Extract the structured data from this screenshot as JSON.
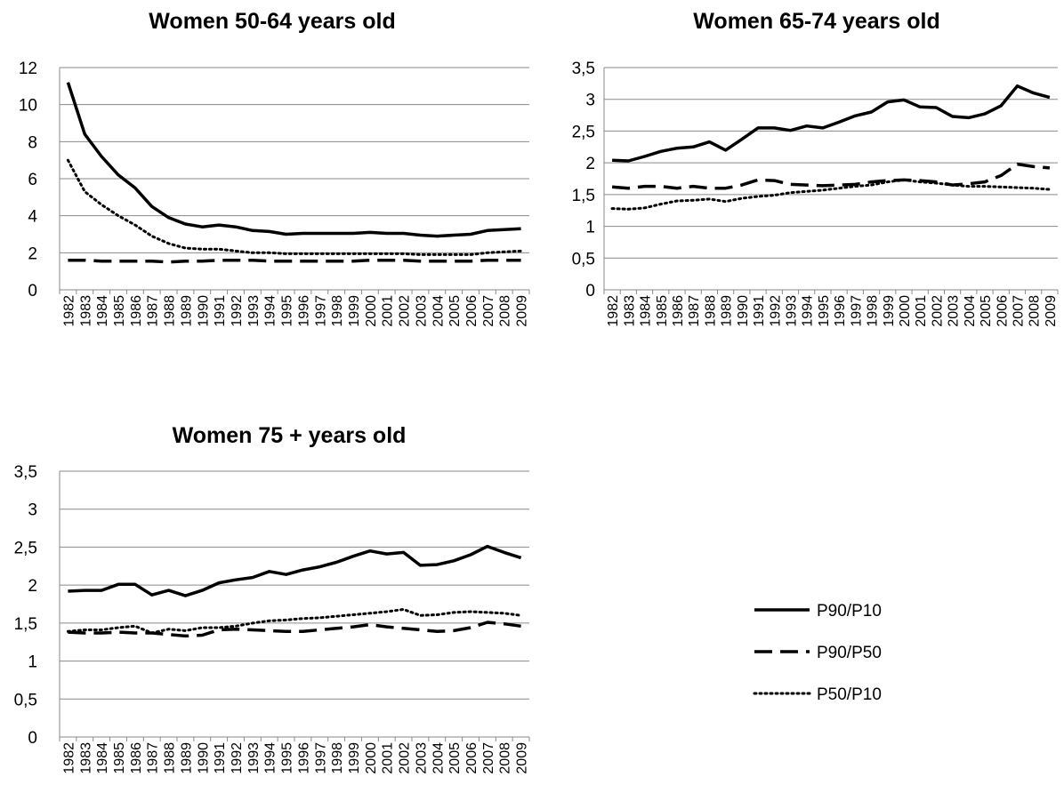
{
  "legend": {
    "position": "right",
    "entries": [
      {
        "series": "P90/P10",
        "style": "solid"
      },
      {
        "series": "P90/P50",
        "style": "dashed"
      },
      {
        "series": "P50/P10",
        "style": "dotted"
      }
    ]
  },
  "chart_data": [
    {
      "type": "line",
      "title": "Women 50-64 years old",
      "xlabel": "",
      "ylabel": "",
      "decimal_separator": ".",
      "ylim": [
        0,
        12
      ],
      "yticks": [
        0,
        2,
        4,
        6,
        8,
        10,
        12
      ],
      "grid": true,
      "x": [
        "1982",
        "1983",
        "1984",
        "1985",
        "1986",
        "1987",
        "1988",
        "1989",
        "1990",
        "1991",
        "1992",
        "1993",
        "1994",
        "1995",
        "1996",
        "1997",
        "1998",
        "1999",
        "2000",
        "2001",
        "2002",
        "2003",
        "2004",
        "2005",
        "2006",
        "2007",
        "2008",
        "2009"
      ],
      "series": [
        {
          "name": "P90/P10",
          "style": "solid",
          "values": [
            11.2,
            8.4,
            7.2,
            6.2,
            5.5,
            4.5,
            3.9,
            3.55,
            3.4,
            3.5,
            3.4,
            3.2,
            3.15,
            3.0,
            3.05,
            3.05,
            3.05,
            3.05,
            3.1,
            3.05,
            3.05,
            2.95,
            2.9,
            2.95,
            3.0,
            3.2,
            3.25,
            3.3
          ]
        },
        {
          "name": "P90/P50",
          "style": "dashed",
          "values": [
            1.6,
            1.6,
            1.55,
            1.55,
            1.55,
            1.55,
            1.5,
            1.55,
            1.55,
            1.6,
            1.6,
            1.6,
            1.55,
            1.55,
            1.55,
            1.55,
            1.55,
            1.55,
            1.6,
            1.6,
            1.6,
            1.55,
            1.55,
            1.55,
            1.55,
            1.6,
            1.6,
            1.6
          ]
        },
        {
          "name": "P50/P10",
          "style": "dotted",
          "values": [
            7.0,
            5.3,
            4.6,
            4.0,
            3.5,
            2.9,
            2.5,
            2.25,
            2.2,
            2.2,
            2.1,
            2.0,
            2.0,
            1.95,
            1.95,
            1.95,
            1.95,
            1.95,
            1.95,
            1.95,
            1.95,
            1.9,
            1.9,
            1.9,
            1.9,
            2.0,
            2.05,
            2.1
          ]
        }
      ]
    },
    {
      "type": "line",
      "title": "Women 65-74 years old",
      "xlabel": "",
      "ylabel": "",
      "decimal_separator": ",",
      "ylim": [
        0,
        3.5
      ],
      "yticks": [
        0,
        0.5,
        1,
        1.5,
        2,
        2.5,
        3,
        3.5
      ],
      "grid": true,
      "x": [
        "1982",
        "1983",
        "1984",
        "1985",
        "1986",
        "1987",
        "1988",
        "1989",
        "1990",
        "1991",
        "1992",
        "1993",
        "1994",
        "1995",
        "1996",
        "1997",
        "1998",
        "1999",
        "2000",
        "2001",
        "2002",
        "2003",
        "2004",
        "2005",
        "2006",
        "2007",
        "2008",
        "2009"
      ],
      "series": [
        {
          "name": "P90/P10",
          "style": "solid",
          "values": [
            2.04,
            2.03,
            2.1,
            2.18,
            2.23,
            2.25,
            2.33,
            2.2,
            2.37,
            2.55,
            2.55,
            2.51,
            2.58,
            2.55,
            2.64,
            2.74,
            2.8,
            2.96,
            2.99,
            2.88,
            2.87,
            2.73,
            2.71,
            2.77,
            2.9,
            3.21,
            3.1,
            3.03
          ]
        },
        {
          "name": "P90/P50",
          "style": "dashed",
          "values": [
            1.62,
            1.6,
            1.63,
            1.63,
            1.6,
            1.63,
            1.6,
            1.6,
            1.65,
            1.73,
            1.72,
            1.66,
            1.65,
            1.64,
            1.65,
            1.66,
            1.7,
            1.72,
            1.73,
            1.72,
            1.7,
            1.65,
            1.67,
            1.7,
            1.8,
            1.98,
            1.94,
            1.92
          ]
        },
        {
          "name": "P50/P10",
          "style": "dotted",
          "values": [
            1.28,
            1.27,
            1.29,
            1.35,
            1.4,
            1.41,
            1.43,
            1.39,
            1.44,
            1.47,
            1.49,
            1.53,
            1.55,
            1.57,
            1.6,
            1.63,
            1.65,
            1.7,
            1.73,
            1.7,
            1.68,
            1.65,
            1.63,
            1.63,
            1.62,
            1.61,
            1.6,
            1.58
          ]
        }
      ]
    },
    {
      "type": "line",
      "title": "Women 75 + years old",
      "xlabel": "",
      "ylabel": "",
      "decimal_separator": ",",
      "ylim": [
        0,
        3.5
      ],
      "yticks": [
        0,
        0.5,
        1,
        1.5,
        2,
        2.5,
        3,
        3.5
      ],
      "grid": true,
      "x": [
        "1982",
        "1983",
        "1984",
        "1985",
        "1986",
        "1987",
        "1988",
        "1989",
        "1990",
        "1991",
        "1992",
        "1993",
        "1994",
        "1995",
        "1996",
        "1997",
        "1998",
        "1999",
        "2000",
        "2001",
        "2002",
        "2003",
        "2004",
        "2005",
        "2006",
        "2007",
        "2008",
        "2009"
      ],
      "series": [
        {
          "name": "P90/P10",
          "style": "solid",
          "values": [
            1.92,
            1.93,
            1.93,
            2.01,
            2.01,
            1.87,
            1.93,
            1.86,
            1.93,
            2.03,
            2.07,
            2.1,
            2.18,
            2.14,
            2.2,
            2.24,
            2.3,
            2.38,
            2.45,
            2.41,
            2.43,
            2.26,
            2.27,
            2.32,
            2.4,
            2.51,
            2.43,
            2.36
          ]
        },
        {
          "name": "P90/P50",
          "style": "dashed",
          "values": [
            1.38,
            1.37,
            1.37,
            1.38,
            1.37,
            1.37,
            1.35,
            1.33,
            1.34,
            1.41,
            1.42,
            1.41,
            1.4,
            1.39,
            1.39,
            1.41,
            1.43,
            1.45,
            1.48,
            1.45,
            1.43,
            1.41,
            1.39,
            1.4,
            1.44,
            1.51,
            1.49,
            1.46
          ]
        },
        {
          "name": "P50/P10",
          "style": "dotted",
          "values": [
            1.39,
            1.41,
            1.41,
            1.44,
            1.46,
            1.37,
            1.42,
            1.4,
            1.44,
            1.44,
            1.46,
            1.5,
            1.53,
            1.54,
            1.56,
            1.57,
            1.59,
            1.61,
            1.63,
            1.65,
            1.68,
            1.6,
            1.61,
            1.64,
            1.65,
            1.64,
            1.63,
            1.6
          ]
        }
      ]
    }
  ]
}
